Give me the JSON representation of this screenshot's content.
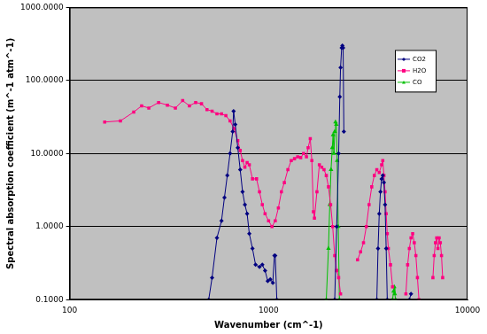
{
  "chart_data": {
    "type": "line",
    "x_label": "Wavenumber (cm^-1)",
    "y_label": "Spectral absorption coefficient (m^-1 atm^-1)",
    "log": true,
    "grid": "y",
    "legend": "upper right",
    "xlim": [
      100,
      10000
    ],
    "xticks": [
      100,
      1000,
      10000
    ],
    "ylim": [
      0.1,
      1000
    ],
    "yticks": [
      {
        "value": 0.1,
        "label": "0.1000"
      },
      {
        "value": 1,
        "label": "1.0000"
      },
      {
        "value": 10,
        "label": "10.0000"
      },
      {
        "value": 100,
        "label": "100.0000"
      },
      {
        "value": 1000,
        "label": "1000.0000"
      }
    ],
    "series": [
      {
        "name": "CO2",
        "color": "#000080",
        "marker": "diamond",
        "line_style": "solid",
        "x": [
          500,
          520,
          550,
          580,
          600,
          620,
          640,
          660,
          667,
          680,
          700,
          720,
          740,
          760,
          780,
          800,
          830,
          860,
          900,
          930,
          960,
          990,
          1020,
          1050,
          1070,
          1080,
          1100,
          1500,
          2150,
          2200,
          2250,
          2280,
          2300,
          2330,
          2350,
          2370,
          2390,
          2500,
          3500,
          3550,
          3600,
          3650,
          3700,
          3750,
          3800,
          3850,
          3900,
          3950,
          4500,
          5100,
          5200
        ],
        "values": [
          0.1,
          0.2,
          0.7,
          1.2,
          2.5,
          5,
          10,
          20,
          38,
          25,
          12,
          6,
          3,
          2,
          1.5,
          0.8,
          0.5,
          0.3,
          0.28,
          0.3,
          0.25,
          0.18,
          0.19,
          0.17,
          0.4,
          0.4,
          0.1,
          null,
          0.1,
          1,
          10,
          60,
          150,
          280,
          300,
          280,
          20,
          null,
          0.1,
          0.5,
          1.5,
          3,
          4.5,
          5,
          4,
          2,
          0.5,
          0.1,
          null,
          0.1,
          0.12
        ]
      },
      {
        "name": "H2O",
        "color": "#ff0080",
        "marker": "square",
        "line_style": "solid",
        "x": [
          150,
          180,
          210,
          230,
          250,
          280,
          310,
          340,
          370,
          400,
          430,
          460,
          490,
          520,
          550,
          580,
          610,
          640,
          670,
          700,
          720,
          740,
          760,
          780,
          800,
          830,
          870,
          900,
          930,
          960,
          1000,
          1040,
          1080,
          1120,
          1160,
          1200,
          1250,
          1300,
          1350,
          1400,
          1450,
          1500,
          1550,
          1580,
          1620,
          1650,
          1680,
          1700,
          1750,
          1800,
          1850,
          1900,
          1950,
          2000,
          2050,
          2100,
          2150,
          2200,
          2250,
          2300,
          2400,
          2800,
          2900,
          3000,
          3100,
          3200,
          3300,
          3400,
          3500,
          3600,
          3700,
          3750,
          3800,
          3850,
          3900,
          3950,
          4000,
          4100,
          4200,
          4400,
          4900,
          5000,
          5100,
          5200,
          5300,
          5400,
          5500,
          5600,
          5700,
          6000,
          6700,
          6800,
          6900,
          7000,
          7100,
          7200,
          7300,
          7400,
          7500
        ],
        "values": [
          27,
          28,
          37,
          45,
          42,
          50,
          46,
          42,
          53,
          45,
          50,
          48,
          40,
          38,
          35,
          35,
          33,
          28,
          22,
          15,
          11,
          8,
          6.5,
          7.5,
          7,
          4.5,
          4.5,
          3,
          2,
          1.5,
          1.2,
          1,
          1.2,
          1.8,
          3,
          4,
          6,
          8,
          8.5,
          9,
          8.8,
          10,
          9,
          12,
          16,
          8,
          1.6,
          1.3,
          3,
          7,
          6.5,
          6,
          5,
          3.5,
          2,
          1,
          0.4,
          0.25,
          0.2,
          0.12,
          null,
          0.35,
          0.45,
          0.6,
          1,
          2,
          3.5,
          5,
          6,
          5.5,
          7,
          8,
          5,
          3,
          1.5,
          0.8,
          0.5,
          0.3,
          0.15,
          null,
          0.12,
          0.3,
          0.5,
          0.7,
          0.8,
          0.6,
          0.4,
          0.2,
          0.1,
          null,
          0.2,
          0.4,
          0.6,
          0.7,
          0.5,
          0.7,
          0.6,
          0.4,
          0.2
        ]
      },
      {
        "name": "CO",
        "color": "#00c000",
        "marker": "triangle",
        "line_style": "solid",
        "x": [
          1950,
          2000,
          2030,
          2060,
          2090,
          2110,
          2130,
          2150,
          2170,
          2190,
          2210,
          2240,
          2270,
          3000,
          4200,
          4250,
          4280,
          4310,
          4350
        ],
        "values": [
          0.1,
          0.5,
          2,
          6,
          12,
          18,
          10,
          20,
          27,
          25,
          8,
          1,
          0.1,
          null,
          0.1,
          0.13,
          0.15,
          0.12,
          0.1
        ]
      }
    ]
  }
}
